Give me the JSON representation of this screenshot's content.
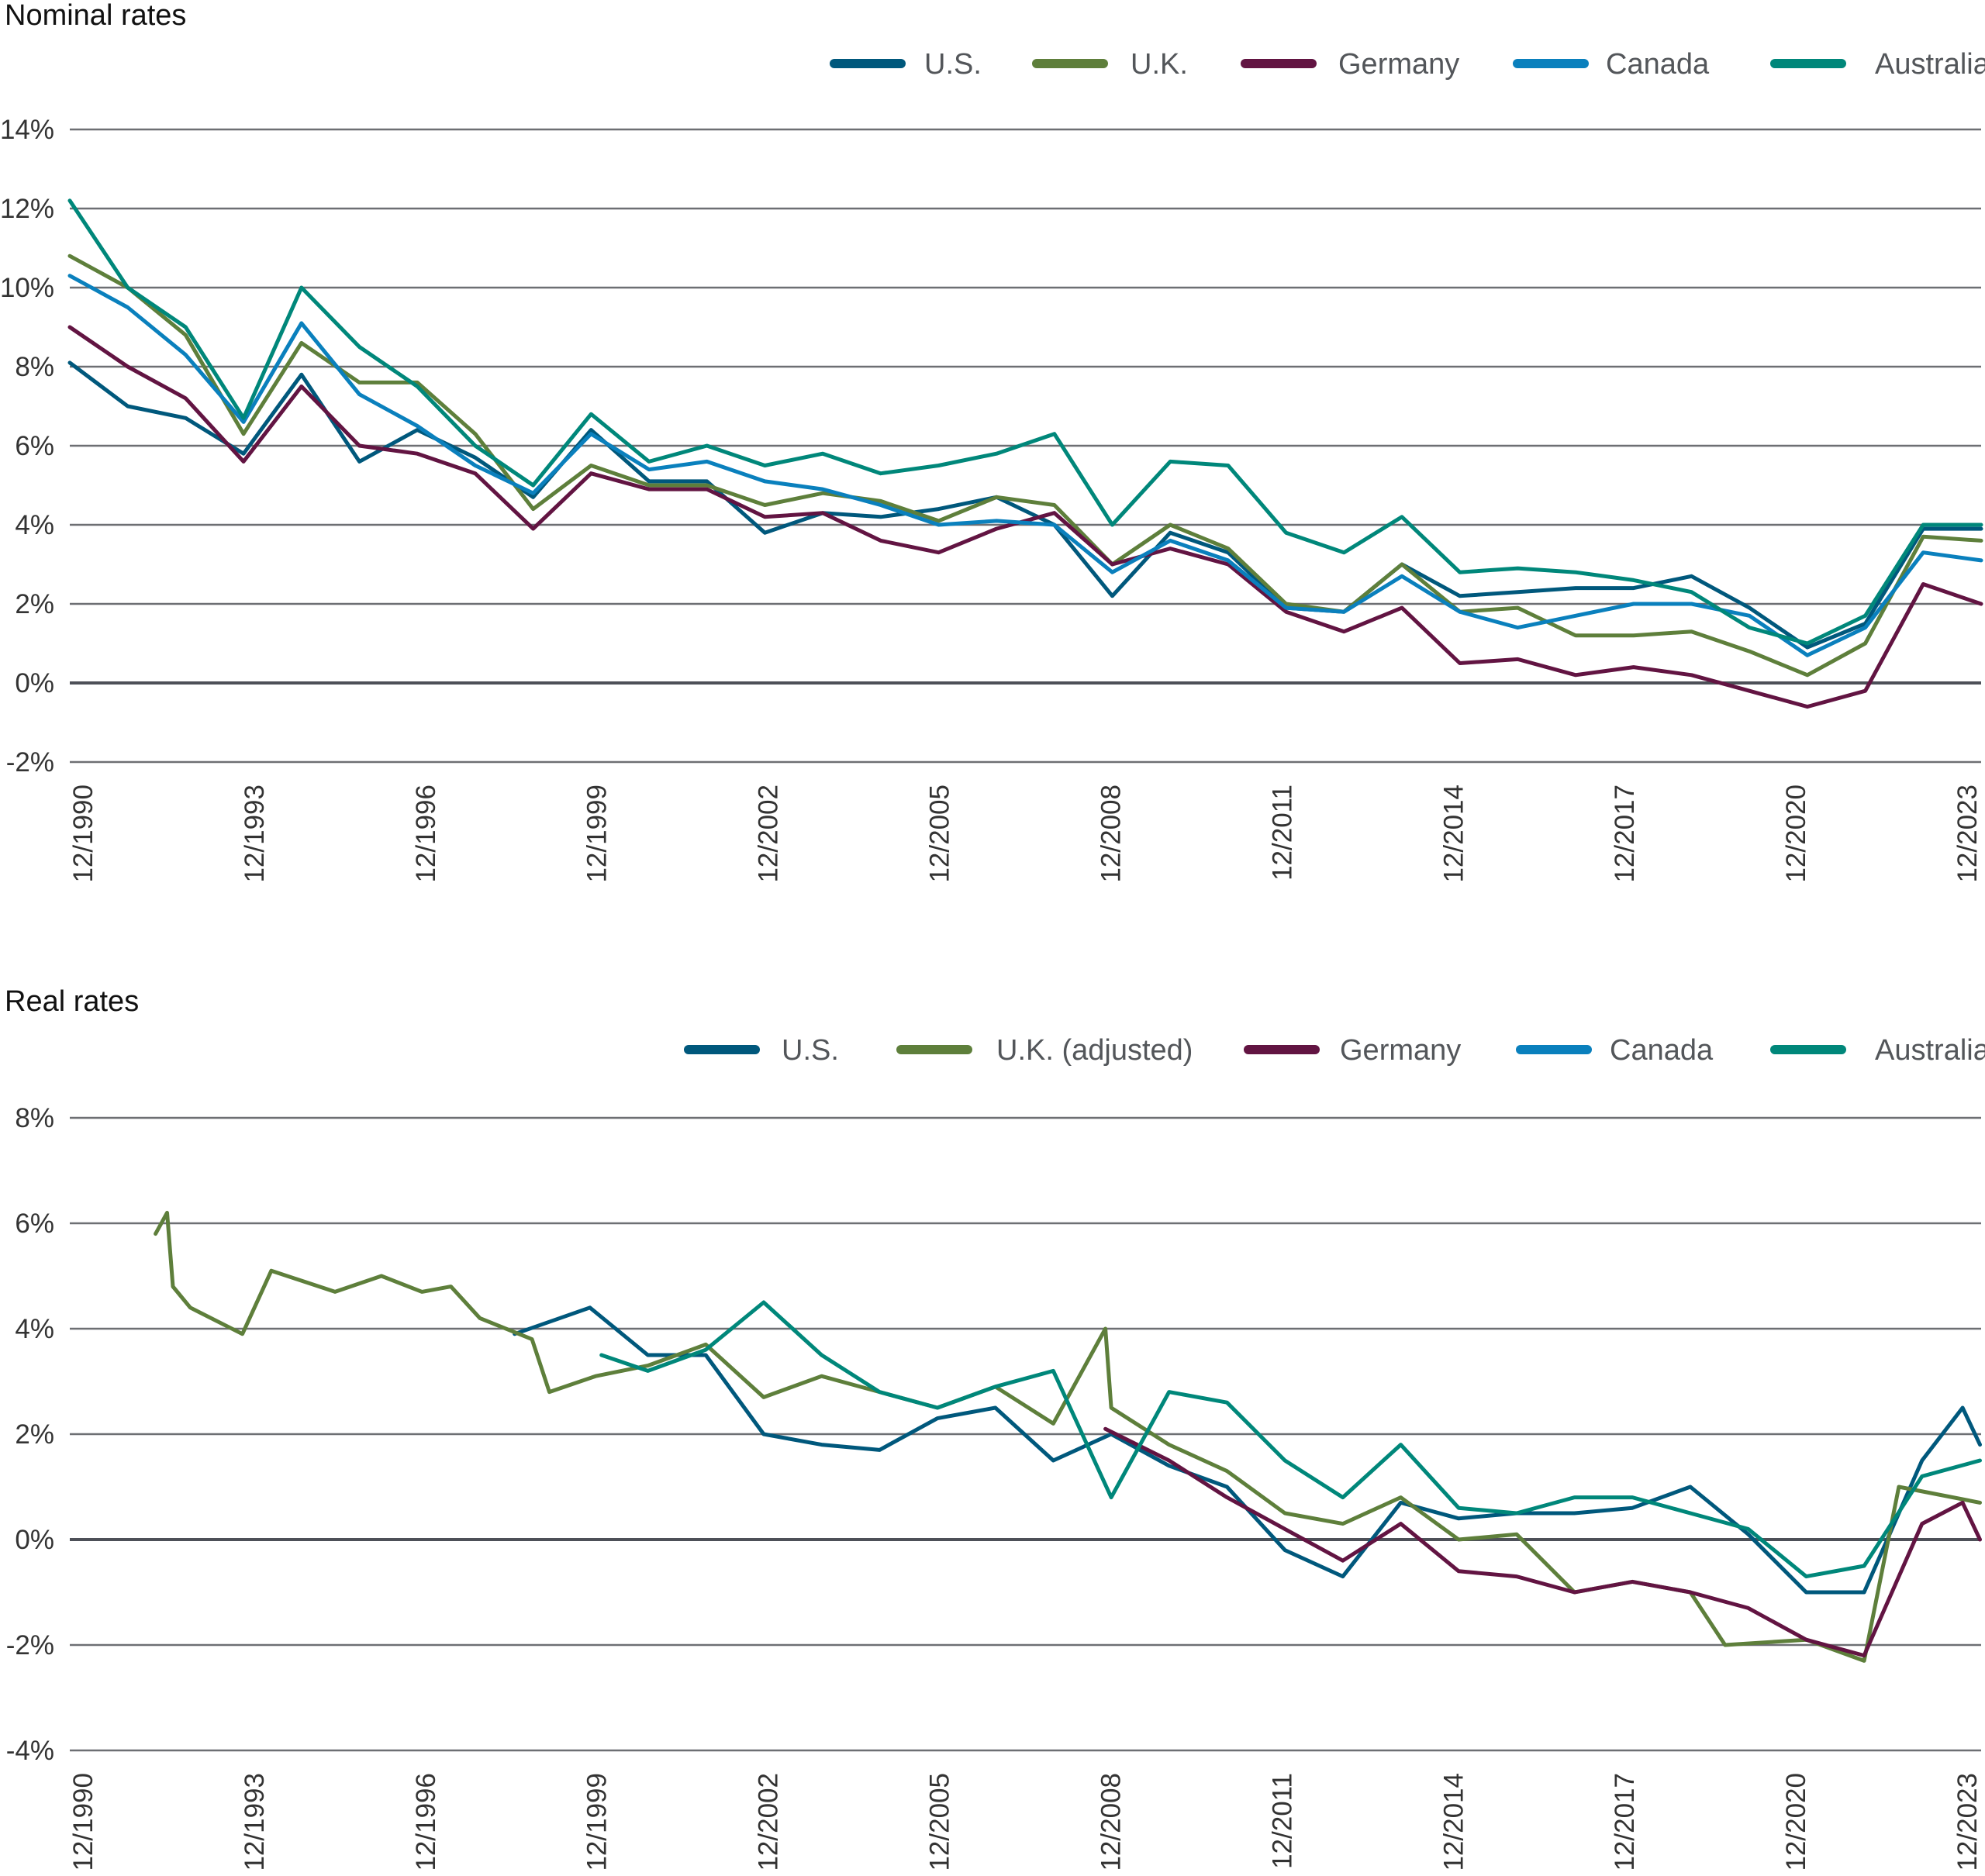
{
  "colors": {
    "U.S.": "#00587c",
    "U.K.": "#5e7f3b",
    "Germany": "#621442",
    "Canada": "#0a80bd",
    "Australia": "#00877a"
  },
  "chart_data": [
    {
      "type": "line",
      "title": "Nominal rates",
      "legend_position": "top-right",
      "grid": true,
      "ylim": [
        -2,
        14
      ],
      "yticks": [
        "14%",
        "12%",
        "10%",
        "8%",
        "6%",
        "4%",
        "2%",
        "0%",
        "-2%"
      ],
      "ytick_values": [
        14,
        12,
        10,
        8,
        6,
        4,
        2,
        0,
        -2
      ],
      "xlim": [
        "12/1990",
        "12/2023"
      ],
      "xticks": [
        "12/1990",
        "12/1993",
        "12/1996",
        "12/1999",
        "12/2002",
        "12/2005",
        "12/2008",
        "12/2011",
        "12/2014",
        "12/2017",
        "12/2020",
        "12/2023"
      ],
      "x": [
        "12/1990",
        "12/1991",
        "12/1992",
        "12/1993",
        "12/1994",
        "12/1995",
        "12/1996",
        "12/1997",
        "12/1998",
        "12/1999",
        "12/2000",
        "12/2001",
        "12/2002",
        "12/2003",
        "12/2004",
        "12/2005",
        "12/2006",
        "12/2007",
        "12/2008",
        "12/2009",
        "12/2010",
        "12/2011",
        "12/2012",
        "12/2013",
        "12/2014",
        "12/2015",
        "12/2016",
        "12/2017",
        "12/2018",
        "12/2019",
        "12/2020",
        "12/2021",
        "12/2022",
        "12/2023"
      ],
      "series": [
        {
          "name": "U.S.",
          "color_key": "U.S.",
          "values": [
            8.1,
            7.0,
            6.7,
            5.8,
            7.8,
            5.6,
            6.4,
            5.7,
            4.7,
            6.4,
            5.1,
            5.1,
            3.8,
            4.3,
            4.2,
            4.4,
            4.7,
            4.0,
            2.2,
            3.8,
            3.3,
            1.9,
            1.8,
            3.0,
            2.2,
            2.3,
            2.4,
            2.4,
            2.7,
            1.9,
            0.9,
            1.5,
            3.9,
            3.9
          ]
        },
        {
          "name": "U.K.",
          "color_key": "U.K.",
          "values": [
            10.8,
            10.0,
            8.8,
            6.3,
            8.6,
            7.6,
            7.6,
            6.3,
            4.4,
            5.5,
            5.0,
            5.0,
            4.5,
            4.8,
            4.6,
            4.1,
            4.7,
            4.5,
            3.0,
            4.0,
            3.4,
            2.0,
            1.8,
            3.0,
            1.8,
            1.9,
            1.2,
            1.2,
            1.3,
            0.8,
            0.2,
            1.0,
            3.7,
            3.6
          ]
        },
        {
          "name": "Germany",
          "color_key": "Germany",
          "values": [
            9.0,
            8.0,
            7.2,
            5.6,
            7.5,
            6.0,
            5.8,
            5.3,
            3.9,
            5.3,
            4.9,
            4.9,
            4.2,
            4.3,
            3.6,
            3.3,
            3.9,
            4.3,
            3.0,
            3.4,
            3.0,
            1.8,
            1.3,
            1.9,
            0.5,
            0.6,
            0.2,
            0.4,
            0.2,
            -0.2,
            -0.6,
            -0.2,
            2.5,
            2.0
          ]
        },
        {
          "name": "Canada",
          "color_key": "Canada",
          "values": [
            10.3,
            9.5,
            8.3,
            6.6,
            9.1,
            7.3,
            6.5,
            5.5,
            4.8,
            6.3,
            5.4,
            5.6,
            5.1,
            4.9,
            4.5,
            4.0,
            4.1,
            4.0,
            2.8,
            3.6,
            3.1,
            1.9,
            1.8,
            2.7,
            1.8,
            1.4,
            1.7,
            2.0,
            2.0,
            1.7,
            0.7,
            1.4,
            3.3,
            3.1
          ]
        },
        {
          "name": "Australia",
          "color_key": "Australia",
          "values": [
            12.2,
            10.0,
            9.0,
            6.7,
            10.0,
            8.5,
            7.5,
            6.0,
            5.0,
            6.8,
            5.6,
            6.0,
            5.5,
            5.8,
            5.3,
            5.5,
            5.8,
            6.3,
            4.0,
            5.6,
            5.5,
            3.8,
            3.3,
            4.2,
            2.8,
            2.9,
            2.8,
            2.6,
            2.3,
            1.4,
            1.0,
            1.7,
            4.0,
            4.0
          ]
        }
      ]
    },
    {
      "type": "line",
      "title": "Real rates",
      "legend_position": "top-right",
      "grid": true,
      "ylim": [
        -4,
        8
      ],
      "yticks": [
        "8%",
        "6%",
        "4%",
        "2%",
        "0%",
        "-2%",
        "-4%"
      ],
      "ytick_values": [
        8,
        6,
        4,
        2,
        0,
        -2,
        -4
      ],
      "xlim": [
        "12/1990",
        "12/2023"
      ],
      "xticks": [
        "12/1990",
        "12/1993",
        "12/1996",
        "12/1999",
        "12/2002",
        "12/2005",
        "12/2008",
        "12/2011",
        "12/2014",
        "12/2017",
        "12/2020",
        "12/2023"
      ],
      "series": [
        {
          "name": "U.S.",
          "color_key": "U.S.",
          "points": [
            [
              1998.6,
              3.9
            ],
            [
              1999.9,
              4.4
            ],
            [
              2000.9,
              3.5
            ],
            [
              2001.9,
              3.5
            ],
            [
              2002.9,
              2.0
            ],
            [
              2003.9,
              1.8
            ],
            [
              2004.9,
              1.7
            ],
            [
              2005.9,
              2.3
            ],
            [
              2006.9,
              2.5
            ],
            [
              2007.9,
              1.5
            ],
            [
              2008.9,
              2.0
            ],
            [
              2009.9,
              1.4
            ],
            [
              2010.9,
              1.0
            ],
            [
              2011.9,
              -0.2
            ],
            [
              2012.9,
              -0.7
            ],
            [
              2013.9,
              0.7
            ],
            [
              2014.9,
              0.4
            ],
            [
              2015.9,
              0.5
            ],
            [
              2016.9,
              0.5
            ],
            [
              2017.9,
              0.6
            ],
            [
              2018.9,
              1.0
            ],
            [
              2019.9,
              0.1
            ],
            [
              2020.9,
              -1.0
            ],
            [
              2021.9,
              -1.0
            ],
            [
              2022.9,
              1.5
            ],
            [
              2023.6,
              2.5
            ],
            [
              2023.9,
              1.8
            ]
          ]
        },
        {
          "name": "U.K. (adjusted)",
          "color_key": "U.K.",
          "points": [
            [
              1992.4,
              5.8
            ],
            [
              1992.6,
              6.2
            ],
            [
              1992.7,
              4.8
            ],
            [
              1993.0,
              4.4
            ],
            [
              1993.9,
              3.9
            ],
            [
              1994.4,
              5.1
            ],
            [
              1995.5,
              4.7
            ],
            [
              1996.3,
              5.0
            ],
            [
              1997.0,
              4.7
            ],
            [
              1997.5,
              4.8
            ],
            [
              1998.0,
              4.2
            ],
            [
              1998.9,
              3.8
            ],
            [
              1999.2,
              2.8
            ],
            [
              2000.0,
              3.1
            ],
            [
              2000.9,
              3.3
            ],
            [
              2001.9,
              3.7
            ],
            [
              2002.9,
              2.7
            ],
            [
              2003.9,
              3.1
            ],
            [
              2004.9,
              2.8
            ],
            [
              2005.9,
              2.5
            ],
            [
              2006.9,
              2.9
            ],
            [
              2007.9,
              2.2
            ],
            [
              2008.8,
              4.0
            ],
            [
              2008.9,
              2.5
            ],
            [
              2009.9,
              1.8
            ],
            [
              2010.9,
              1.3
            ],
            [
              2011.9,
              0.5
            ],
            [
              2012.9,
              0.3
            ],
            [
              2013.9,
              0.8
            ],
            [
              2014.9,
              0.0
            ],
            [
              2015.9,
              0.1
            ],
            [
              2016.9,
              -1.0
            ],
            [
              2017.9,
              -0.8
            ],
            [
              2018.9,
              -1.0
            ],
            [
              2019.5,
              -2.0
            ],
            [
              2020.9,
              -1.9
            ],
            [
              2021.9,
              -2.3
            ],
            [
              2022.5,
              1.0
            ],
            [
              2023.9,
              0.7
            ]
          ]
        },
        {
          "name": "Germany",
          "color_key": "Germany",
          "points": [
            [
              2008.8,
              2.1
            ],
            [
              2009.9,
              1.5
            ],
            [
              2010.9,
              0.8
            ],
            [
              2011.9,
              0.2
            ],
            [
              2012.9,
              -0.4
            ],
            [
              2013.9,
              0.3
            ],
            [
              2014.9,
              -0.6
            ],
            [
              2015.9,
              -0.7
            ],
            [
              2016.9,
              -1.0
            ],
            [
              2017.9,
              -0.8
            ],
            [
              2018.9,
              -1.0
            ],
            [
              2019.9,
              -1.3
            ],
            [
              2020.9,
              -1.9
            ],
            [
              2021.9,
              -2.2
            ],
            [
              2022.9,
              0.3
            ],
            [
              2023.6,
              0.7
            ],
            [
              2023.9,
              0.0
            ]
          ]
        },
        {
          "name": "Canada",
          "color_key": "Canada",
          "points": []
        },
        {
          "name": "Australia",
          "color_key": "Australia",
          "points": [
            [
              2000.1,
              3.5
            ],
            [
              2000.9,
              3.2
            ],
            [
              2001.9,
              3.6
            ],
            [
              2002.9,
              4.5
            ],
            [
              2003.9,
              3.5
            ],
            [
              2004.9,
              2.8
            ],
            [
              2005.9,
              2.5
            ],
            [
              2006.9,
              2.9
            ],
            [
              2007.9,
              3.2
            ],
            [
              2008.9,
              0.8
            ],
            [
              2009.9,
              2.8
            ],
            [
              2010.9,
              2.6
            ],
            [
              2011.9,
              1.5
            ],
            [
              2012.9,
              0.8
            ],
            [
              2013.9,
              1.8
            ],
            [
              2014.9,
              0.6
            ],
            [
              2015.9,
              0.5
            ],
            [
              2016.9,
              0.8
            ],
            [
              2017.9,
              0.8
            ],
            [
              2018.9,
              0.5
            ],
            [
              2019.9,
              0.2
            ],
            [
              2020.9,
              -0.7
            ],
            [
              2021.9,
              -0.5
            ],
            [
              2022.9,
              1.2
            ],
            [
              2023.9,
              1.5
            ]
          ]
        }
      ]
    }
  ]
}
